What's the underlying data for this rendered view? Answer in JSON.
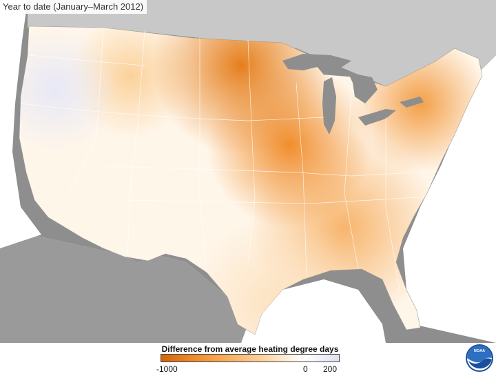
{
  "title": "Year to date (January–March 2012)",
  "legend": {
    "title": "Difference from average heating degree days",
    "ticks": [
      "-1000",
      "0",
      "200"
    ],
    "colors": {
      "min": "#d2650a",
      "zero": "#ffffff",
      "max": "#dfe0f2"
    }
  },
  "logo_text": "NOAA",
  "colors": {
    "ocean": "#ffffff",
    "land_outside": "#8e8e8e",
    "canada_mexico": "#c8c8c8"
  }
}
